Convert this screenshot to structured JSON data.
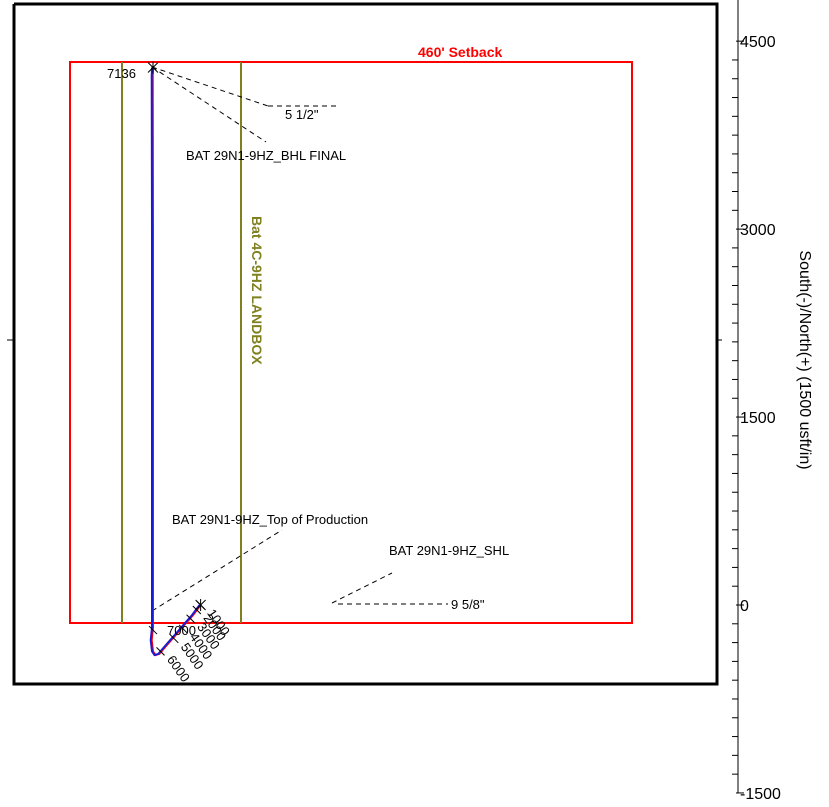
{
  "chart_data": {
    "type": "line",
    "ylabel": "South(-)/North(+) (1500 usft/in)",
    "y_ticks": [
      4500,
      3000,
      1500,
      0,
      -1500
    ],
    "ylim": [
      -1500,
      4500
    ],
    "colors": {
      "setback": "#ff0000",
      "landbox": "#808020",
      "wellpath": "#1a1ad6",
      "plan": "#ff0000",
      "frame": "#000000"
    },
    "series": [
      {
        "points": [
          [
            380,
            0
          ],
          [
            320,
            -80
          ],
          [
            250,
            -160
          ],
          [
            180,
            -240
          ],
          [
            110,
            -320
          ],
          [
            50,
            -390
          ],
          [
            20,
            -400
          ],
          [
            0,
            -370
          ],
          [
            -10,
            -280
          ],
          [
            0,
            -180
          ],
          [
            0,
            100
          ],
          [
            0,
            1500
          ],
          [
            0,
            3000
          ],
          [
            -2,
            4220
          ],
          [
            0,
            4290
          ]
        ]
      }
    ],
    "md_labels": [
      {
        "text": "1000",
        "x": 380,
        "y": 0
      },
      {
        "text": "2000",
        "x": 350,
        "y": -40
      },
      {
        "text": "3000",
        "x": 300,
        "y": -110
      },
      {
        "text": "4000",
        "x": 240,
        "y": -190
      },
      {
        "text": "5000",
        "x": 170,
        "y": -270
      },
      {
        "text": "6000",
        "x": 60,
        "y": -370
      },
      {
        "text": "7000",
        "x": 0,
        "y": -200
      }
    ],
    "annotations": {
      "setback": "460' Setback",
      "landbox": "Bat 4C-9HZ LANDBOX",
      "bhl": "BAT 29N1-9HZ_BHL FINAL",
      "top_prod": "BAT 29N1-9HZ_Top of Production",
      "shl": "BAT 29N1-9HZ_SHL",
      "casing1": "5 1/2\"",
      "casing2": "9 5/8\"",
      "td_md": "7136"
    }
  }
}
